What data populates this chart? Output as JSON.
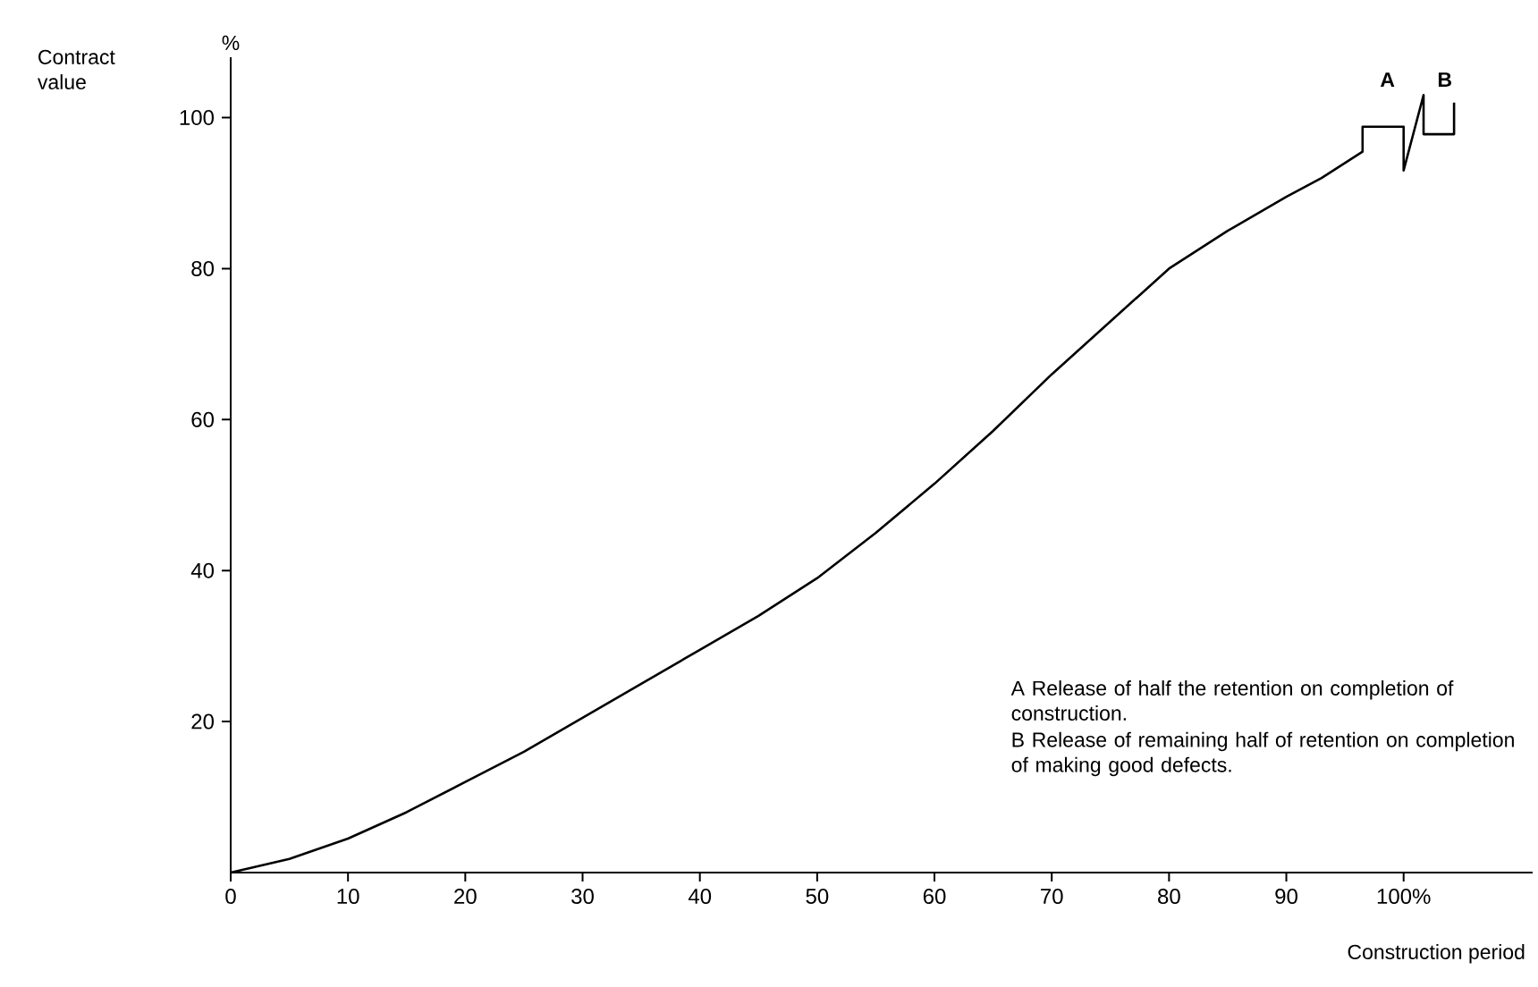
{
  "chart_data": {
    "type": "line",
    "ylabel": "Contract value",
    "xlabel": "Construction period",
    "x": [
      0,
      5,
      10,
      15,
      20,
      25,
      30,
      35,
      40,
      45,
      50,
      55,
      60,
      65,
      70,
      75,
      80,
      85,
      90,
      93,
      96.5,
      96.5,
      100,
      100,
      101.7,
      101.7,
      104.3,
      104.3
    ],
    "values": [
      0,
      1.8,
      4.5,
      8,
      12,
      16,
      20.5,
      25,
      29.5,
      34,
      39,
      45,
      51.5,
      58.5,
      66,
      73,
      80,
      85,
      89.5,
      92,
      95.5,
      98.8,
      98.8,
      93,
      103,
      97.8,
      97.8,
      102
    ],
    "color": "#000000",
    "marker": "none",
    "line_style": "solid",
    "grid": false,
    "xlim": [
      0,
      111
    ],
    "ylim": [
      0,
      108
    ],
    "xticks": [
      0,
      10,
      20,
      30,
      40,
      50,
      60,
      70,
      80,
      90,
      {
        "value": 100,
        "label": "100%"
      }
    ],
    "yticks": [
      20,
      40,
      60,
      80,
      100
    ],
    "annotations": [
      "%",
      "A",
      "B",
      "A Release of half the retention on completion of construction.",
      "B Release of remaining half of retention on completion of making good defects."
    ]
  }
}
